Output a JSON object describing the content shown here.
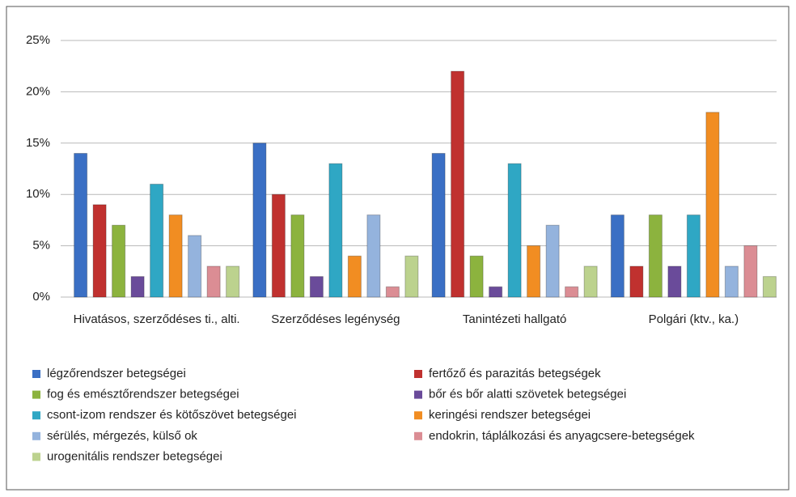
{
  "chart_data": {
    "type": "bar",
    "categories": [
      "Hivatásos, szerződéses ti., alti.",
      "Szerződéses legénység",
      "Tanintézeti hallgató",
      "Polgári (ktv., ka.)"
    ],
    "series": [
      {
        "name": "légzőrendszer betegségei",
        "color": "#3a6fc4",
        "values": [
          14,
          15,
          14,
          8
        ]
      },
      {
        "name": "fertőző és parazitás betegségek",
        "color": "#c0312f",
        "values": [
          9,
          10,
          22,
          3
        ]
      },
      {
        "name": "fog és emésztőrendszer betegségei",
        "color": "#8cb33e",
        "values": [
          7,
          8,
          4,
          8
        ]
      },
      {
        "name": "bőr és bőr alatti szövetek betegségei",
        "color": "#6a4b9a",
        "values": [
          2,
          2,
          1,
          3
        ]
      },
      {
        "name": "csont-izom rendszer és kötőszövet betegségei",
        "color": "#2fa7c4",
        "values": [
          11,
          13,
          13,
          8
        ]
      },
      {
        "name": "keringési rendszer betegségei",
        "color": "#f18d22",
        "values": [
          8,
          4,
          5,
          18
        ]
      },
      {
        "name": "sérülés, mérgezés, külső ok",
        "color": "#94b3dd",
        "values": [
          6,
          8,
          7,
          3
        ]
      },
      {
        "name": "endokrin, táplálkozási és anyagcsere-betegségek",
        "color": "#db8d94",
        "values": [
          3,
          1,
          1,
          5
        ]
      },
      {
        "name": "urogenitális rendszer betegségei",
        "color": "#bcd28e",
        "values": [
          3,
          4,
          3,
          2
        ]
      }
    ],
    "ylim": [
      0,
      25
    ],
    "yticks": [
      {
        "value": 0,
        "label": "0%"
      },
      {
        "value": 5,
        "label": "5%"
      },
      {
        "value": 10,
        "label": "10%"
      },
      {
        "value": 15,
        "label": "15%"
      },
      {
        "value": 20,
        "label": "20%"
      },
      {
        "value": 25,
        "label": "25%"
      }
    ],
    "grid": true,
    "legend": "bottom"
  }
}
